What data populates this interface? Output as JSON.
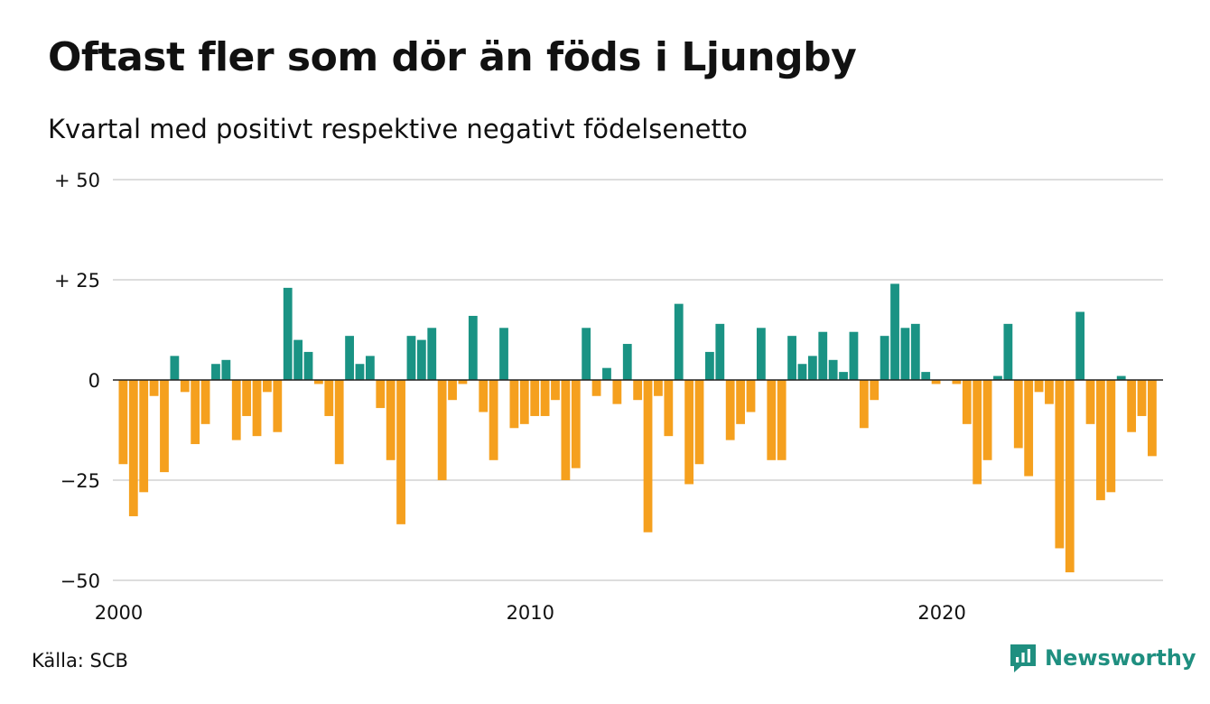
{
  "header": {
    "title": "Oftast fler som dör än föds i Ljungby",
    "subtitle": "Kvartal med positivt respektive negativt födelsenetto"
  },
  "footer": {
    "source": "Källa: SCB",
    "brand": "Newsworthy",
    "brand_icon": "newsworthy-logo-icon"
  },
  "colors": {
    "positive": "#1a9384",
    "negative": "#f5a01e",
    "grid": "#dddddd",
    "brand": "#1f8f80"
  },
  "chart_data": {
    "type": "bar",
    "x_start": 2000,
    "periods_per_year": 4,
    "x_ticks": [
      {
        "value": 2000,
        "label": "2000"
      },
      {
        "value": 2010,
        "label": "2010"
      },
      {
        "value": 2020,
        "label": "2020"
      }
    ],
    "y_ticks": [
      {
        "value": 50,
        "label": "+ 50"
      },
      {
        "value": 25,
        "label": "+ 25"
      },
      {
        "value": 0,
        "label": "0"
      },
      {
        "value": -25,
        "label": "−25"
      },
      {
        "value": -50,
        "label": "−50"
      }
    ],
    "ylim": [
      -50,
      50
    ],
    "grid": true,
    "values": [
      -21,
      -34,
      -28,
      -4,
      -23,
      6,
      -3,
      -16,
      -11,
      4,
      5,
      -15,
      -9,
      -14,
      -3,
      -13,
      23,
      10,
      7,
      -1,
      -9,
      -21,
      11,
      4,
      6,
      -7,
      -20,
      -36,
      11,
      10,
      13,
      -25,
      -5,
      -1,
      16,
      -8,
      -20,
      13,
      -12,
      -11,
      -9,
      -9,
      -5,
      -25,
      -22,
      13,
      -4,
      3,
      -6,
      9,
      -5,
      -38,
      -4,
      -14,
      19,
      -26,
      -21,
      7,
      14,
      -15,
      -11,
      -8,
      13,
      -20,
      -20,
      11,
      4,
      6,
      12,
      5,
      2,
      12,
      -12,
      -5,
      11,
      24,
      13,
      14,
      2,
      -1,
      0,
      -1,
      -11,
      -26,
      -20,
      1,
      14,
      -17,
      -24,
      -3,
      -6,
      -42,
      -48,
      17,
      -11,
      -30,
      -28,
      1,
      -13,
      -9,
      -19
    ]
  }
}
